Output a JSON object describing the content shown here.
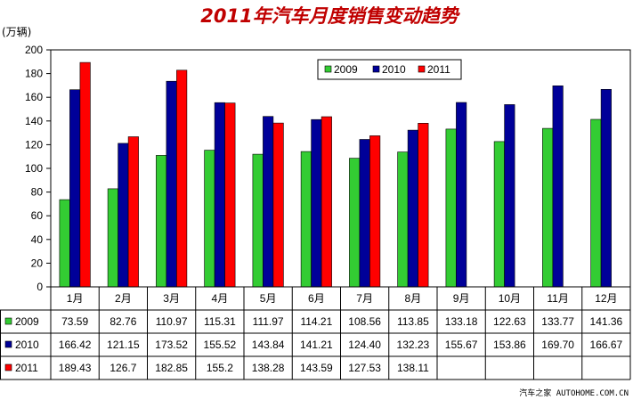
{
  "chart_data": {
    "type": "bar",
    "title": "2011年汽车月度销售变动趋势",
    "ylabel": "(万辆)",
    "xlabel": "",
    "ylim": [
      0,
      200
    ],
    "ytick_step": 20,
    "yticks": [
      "0",
      "20",
      "40",
      "60",
      "80",
      "100",
      "120",
      "140",
      "160",
      "180",
      "200"
    ],
    "categories": [
      "1月",
      "2月",
      "3月",
      "4月",
      "5月",
      "6月",
      "7月",
      "8月",
      "9月",
      "10月",
      "11月",
      "12月"
    ],
    "legend_position": "top-right",
    "grid": false,
    "series": [
      {
        "name": "2009",
        "color": "#33cc33",
        "values": [
          73.59,
          82.76,
          110.97,
          115.31,
          111.97,
          114.21,
          108.56,
          113.85,
          133.18,
          122.63,
          133.77,
          141.36
        ],
        "labels": [
          "73.59",
          "82.76",
          "110.97",
          "115.31",
          "111.97",
          "114.21",
          "108.56",
          "113.85",
          "133.18",
          "122.63",
          "133.77",
          "141.36"
        ]
      },
      {
        "name": "2010",
        "color": "#000099",
        "values": [
          166.42,
          121.15,
          173.52,
          155.52,
          143.84,
          141.21,
          124.4,
          132.23,
          155.67,
          153.86,
          169.7,
          166.67
        ],
        "labels": [
          "166.42",
          "121.15",
          "173.52",
          "155.52",
          "143.84",
          "141.21",
          "124.40",
          "132.23",
          "155.67",
          "153.86",
          "169.70",
          "166.67"
        ]
      },
      {
        "name": "2011",
        "color": "#ff0000",
        "values": [
          189.43,
          126.7,
          182.85,
          155.2,
          138.28,
          143.59,
          127.53,
          138.11,
          null,
          null,
          null,
          null
        ],
        "labels": [
          "189.43",
          "126.7",
          "182.85",
          "155.2",
          "138.28",
          "143.59",
          "127.53",
          "138.11",
          "",
          "",
          "",
          ""
        ]
      }
    ]
  },
  "footer": {
    "watermark": "汽车之家 AUTOHOME.COM.CN"
  }
}
